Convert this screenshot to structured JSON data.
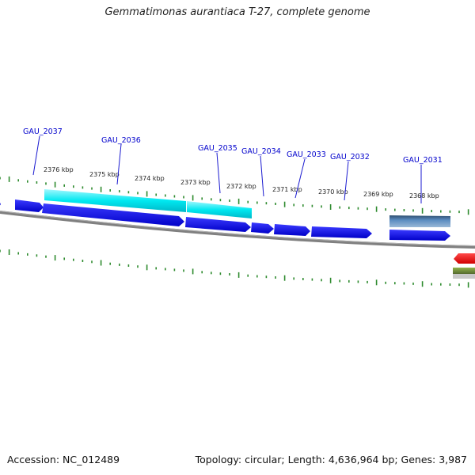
{
  "title": "Gemmatimonas aurantiaca T-27, complete genome",
  "footer": {
    "accession": "Accession: NC_012489",
    "summary": "Topology: circular; Length: 4,636,964 bp; Genes: 3,987"
  },
  "scale_labels": [
    "2376 kbp",
    "2375 kbp",
    "2374 kbp",
    "2373 kbp",
    "2372 kbp",
    "2371 kbp",
    "2370 kbp",
    "2369 kbp",
    "2368 kbp"
  ],
  "genes": [
    {
      "locus": "GAU_2037",
      "color": "#0000ee",
      "strand": "forward"
    },
    {
      "locus": "GAU_2036",
      "color": "#0000ee",
      "strand": "forward"
    },
    {
      "locus": "GAU_2035",
      "color": "#0000ee",
      "strand": "forward"
    },
    {
      "locus": "GAU_2034",
      "color": "#0000ee",
      "strand": "forward"
    },
    {
      "locus": "GAU_2033",
      "color": "#0000ee",
      "strand": "forward"
    },
    {
      "locus": "GAU_2032",
      "color": "#0000ee",
      "strand": "forward"
    },
    {
      "locus": "GAU_2031",
      "color": "#0000ee",
      "strand": "forward"
    }
  ],
  "colors": {
    "gene_label": "#0000cc",
    "cds_forward": "#0000ee",
    "feature_cyan": "#00e5ee",
    "feature_steel": "#4f7fb0",
    "cds_reverse_red": "#ee0000",
    "feature_olive": "#6b8e23",
    "backbone": "#888888",
    "tick": "#2e8b2e"
  }
}
